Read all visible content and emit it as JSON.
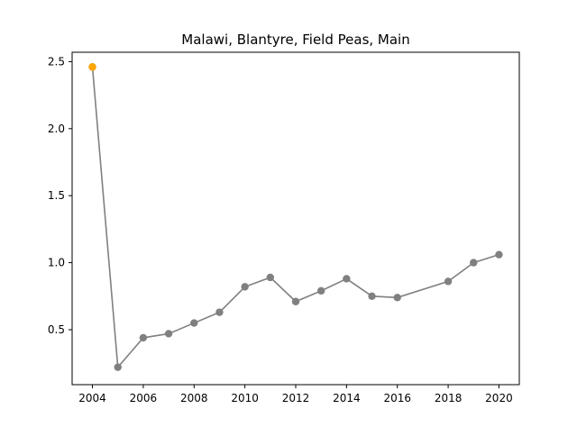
{
  "chart_data": {
    "type": "line",
    "title": "Malawi, Blantyre, Field Peas, Main",
    "xlabel": "",
    "ylabel": "",
    "xlim": [
      2003.2,
      2020.8
    ],
    "ylim": [
      0.09,
      2.57
    ],
    "x_ticks": [
      2004,
      2006,
      2008,
      2010,
      2012,
      2014,
      2016,
      2018,
      2020
    ],
    "y_ticks": [
      0.5,
      1.0,
      1.5,
      2.0,
      2.5
    ],
    "y_tick_labels": [
      "0.5",
      "1.0",
      "1.5",
      "2.0",
      "2.5"
    ],
    "grid": false,
    "legend": "none",
    "series": [
      {
        "color": "#808080",
        "x": [
          2004,
          2005,
          2006,
          2007,
          2008,
          2009,
          2010,
          2011,
          2012,
          2013,
          2014,
          2015,
          2016,
          2018,
          2019,
          2020
        ],
        "values": [
          2.46,
          0.22,
          0.44,
          0.47,
          0.55,
          0.63,
          0.82,
          0.89,
          0.71,
          0.79,
          0.88,
          0.75,
          0.74,
          0.86,
          1.0,
          1.06
        ]
      }
    ],
    "highlight_points": [
      {
        "x": 2004,
        "y": 2.46,
        "color": "#FFA500"
      }
    ]
  }
}
